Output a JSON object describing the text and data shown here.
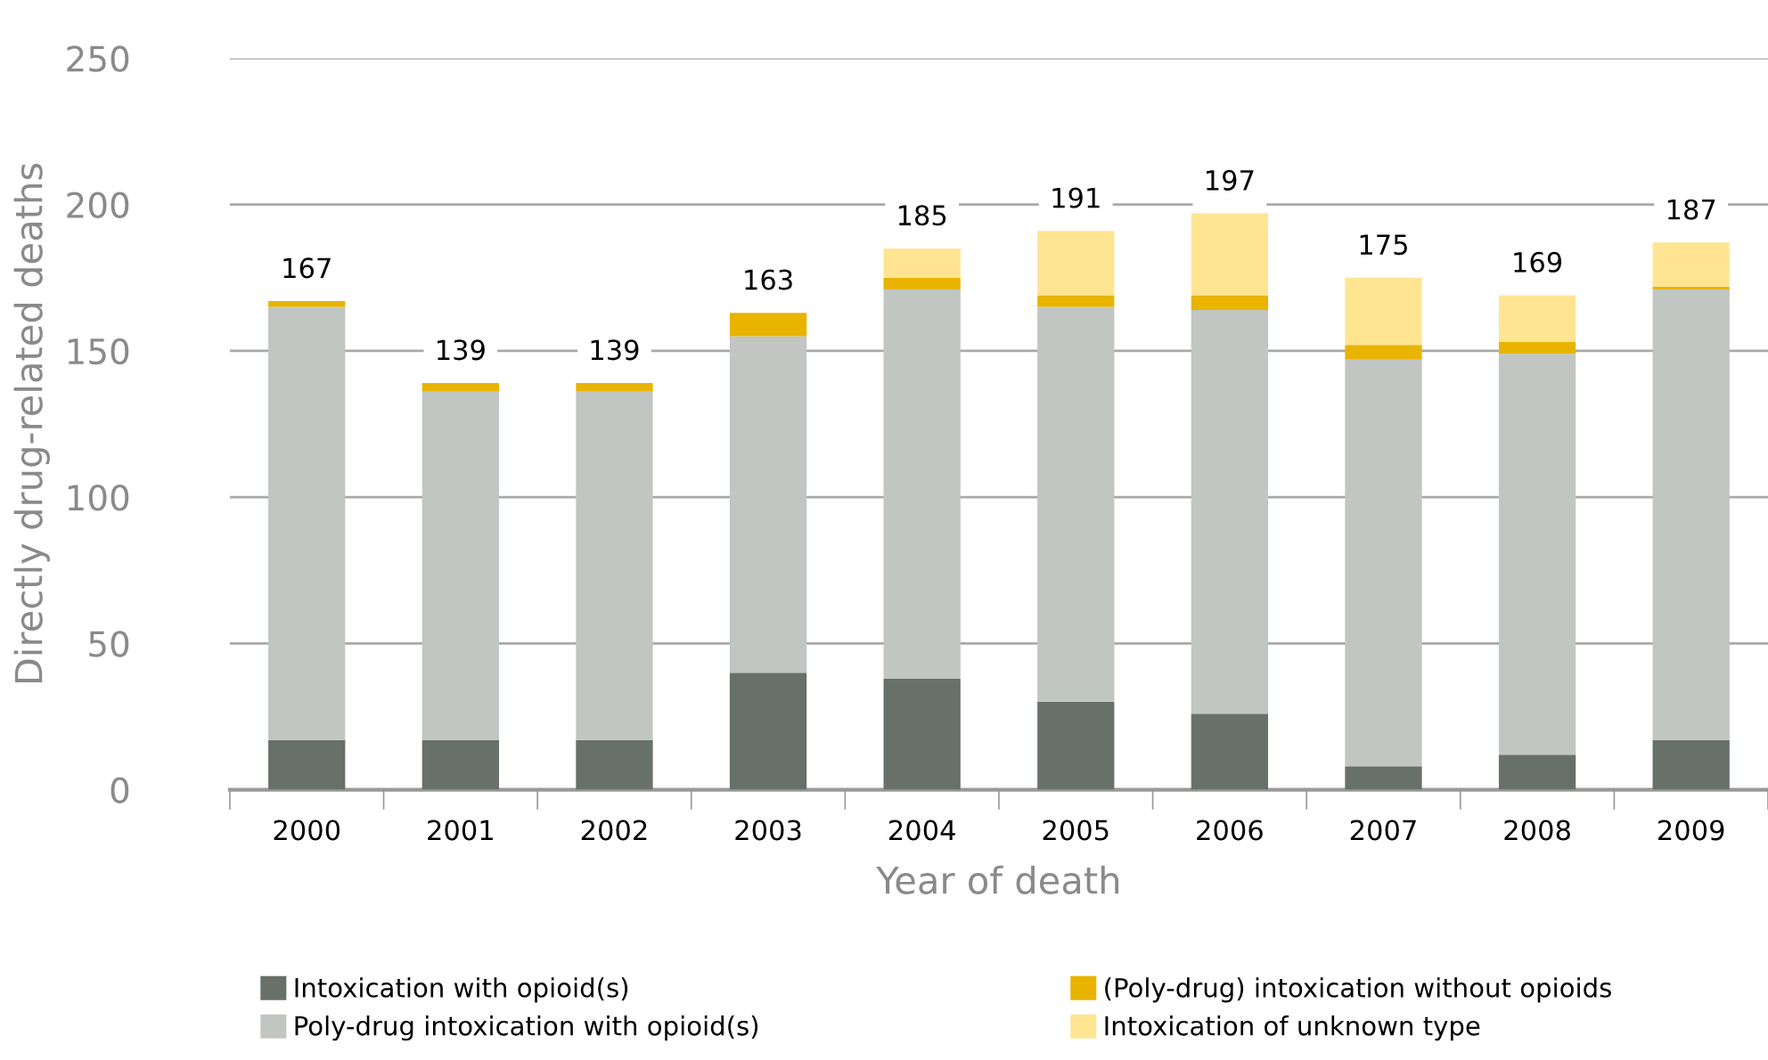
{
  "chart_data": {
    "type": "bar",
    "stacked": true,
    "xlabel": "Year of death",
    "ylabel": "Directly drug-related deaths",
    "categories": [
      "2000",
      "2001",
      "2002",
      "2003",
      "2004",
      "2005",
      "2006",
      "2007",
      "2008",
      "2009"
    ],
    "series": [
      {
        "name": "Intoxication with opioid(s)",
        "color": "#687169",
        "values": [
          17,
          17,
          17,
          40,
          38,
          30,
          26,
          8,
          12,
          17
        ]
      },
      {
        "name": "Poly-drug intoxication with opioid(s)",
        "color": "#c1c6c3",
        "values": [
          148,
          119,
          119,
          115,
          133,
          135,
          138,
          139,
          137,
          154
        ]
      },
      {
        "name": "(Poly-drug) intoxication without opioids",
        "color": "#e8b400",
        "values": [
          2,
          3,
          3,
          8,
          4,
          4,
          5,
          5,
          4,
          1
        ]
      },
      {
        "name": "Intoxication of unknown type",
        "color": "#ffe592",
        "values": [
          0,
          0,
          0,
          0,
          10,
          22,
          28,
          23,
          16,
          15
        ]
      }
    ],
    "totals": [
      "167",
      "139",
      "139",
      "163",
      "185",
      "191",
      "197",
      "175",
      "169",
      "187"
    ],
    "ylim": [
      0,
      250
    ],
    "yticks": [
      0,
      50,
      100,
      150,
      200,
      250
    ],
    "grid": "y",
    "legend": "bottom"
  }
}
